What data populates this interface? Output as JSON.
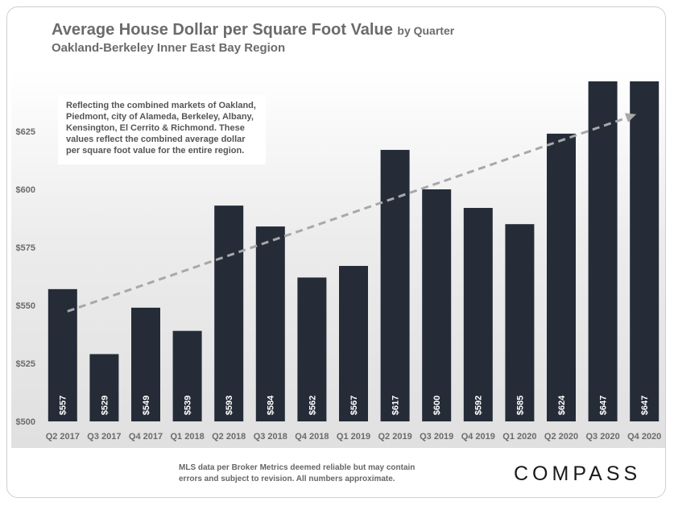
{
  "header": {
    "title": "Average House Dollar per Square Foot Value",
    "title_suffix": "by Quarter",
    "subtitle": "Oakland-Berkeley Inner East Bay Region"
  },
  "annotation": "Reflecting the combined markets of Oakland, Piedmont, city of Alameda, Berkeley, Albany, Kensington, El Cerrito & Richmond. These values reflect the combined average dollar per square foot value for the entire region.",
  "footer": {
    "note": "MLS data per Broker Metrics  deemed reliable but may contain errors and subject to revision. All numbers approximate.",
    "logo": "COMPASS"
  },
  "colors": {
    "bar": "#252c38",
    "trend": "#a8a8a8",
    "text": "#6b6b6b"
  },
  "chart_data": {
    "type": "bar",
    "title": "Average House Dollar per Square Foot Value by Quarter",
    "subtitle": "Oakland-Berkeley Inner East Bay Region",
    "categories": [
      "Q2 2017",
      "Q3 2017",
      "Q4 2017",
      "Q1 2018",
      "Q2 2018",
      "Q3 2018",
      "Q4 2018",
      "Q1 2019",
      "Q2 2019",
      "Q3 2019",
      "Q4 2019",
      "Q1 2020",
      "Q2 2020",
      "Q3 2020",
      "Q4 2020"
    ],
    "values": [
      557,
      529,
      549,
      539,
      593,
      584,
      562,
      567,
      617,
      600,
      592,
      585,
      624,
      647,
      647
    ],
    "data_labels": [
      "$557",
      "$529",
      "$549",
      "$539",
      "$593",
      "$584",
      "$562",
      "$567",
      "$617",
      "$600",
      "$592",
      "$585",
      "$624",
      "$647",
      "$647"
    ],
    "yticks": [
      500,
      525,
      550,
      575,
      600,
      625
    ],
    "ytick_labels": [
      "$500",
      "$525",
      "$550",
      "$575",
      "$600",
      "$625"
    ],
    "ylim": [
      500,
      640
    ],
    "trendline": {
      "style": "dashed",
      "arrow": true,
      "from": 553,
      "to": 640
    },
    "grid": false,
    "legend": "none"
  }
}
